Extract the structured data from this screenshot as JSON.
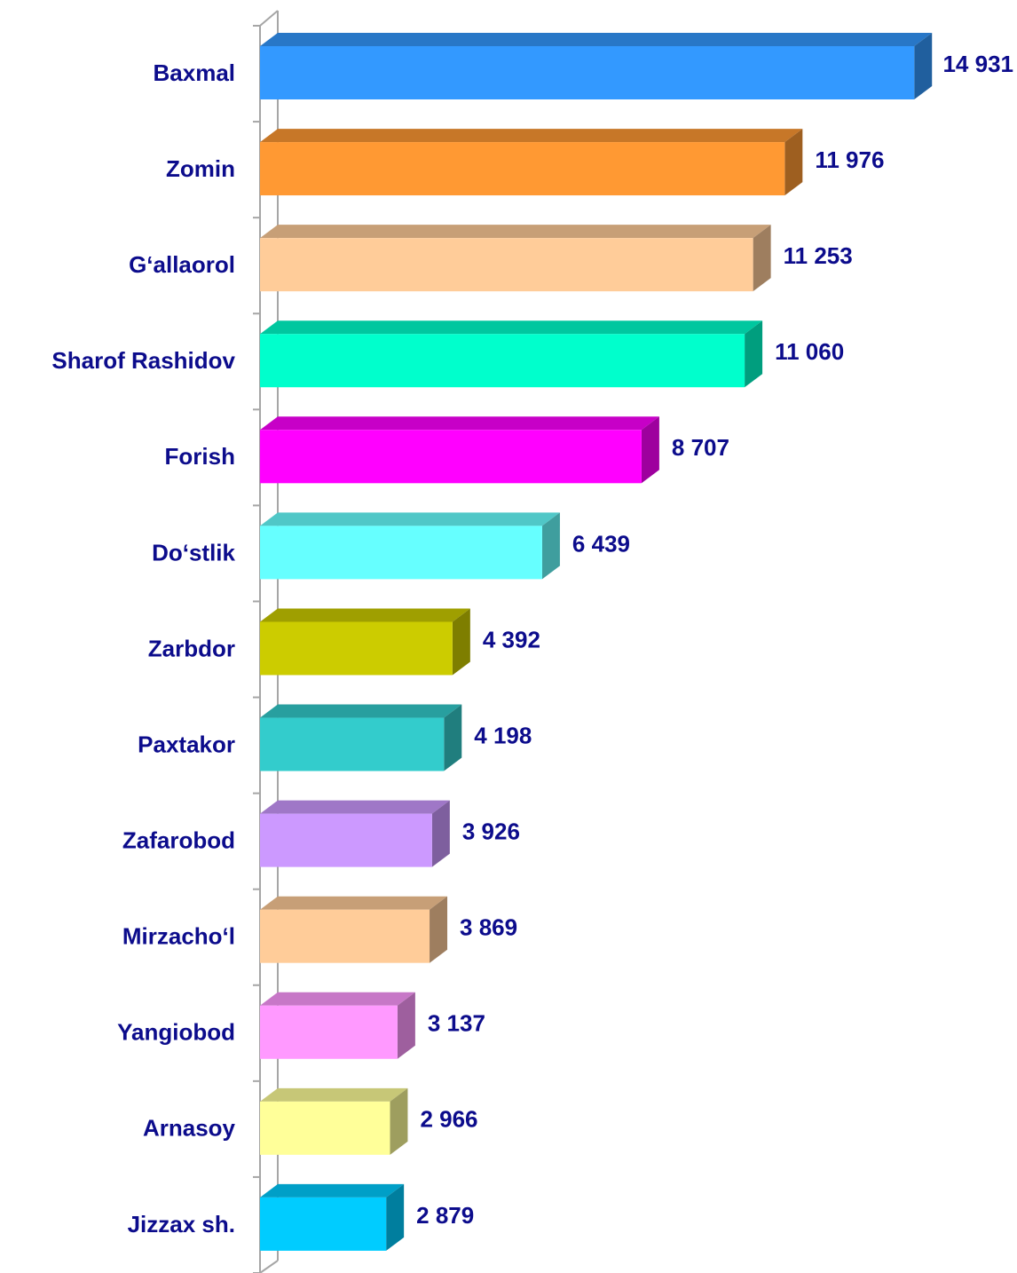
{
  "chart_data": {
    "type": "bar3d-horizontal",
    "categories": [
      "Baxmal",
      "Zomin",
      "G‘allaorol",
      "Sharof Rashidov",
      "Forish",
      "Do‘stlik",
      "Zarbdor",
      "Paxtakor",
      "Zafarobod",
      "Mirzacho‘l",
      "Yangiobod",
      "Arnasoy",
      "Jizzax sh."
    ],
    "values": [
      14931,
      11976,
      11253,
      11060,
      8707,
      6439,
      4392,
      4198,
      3926,
      3869,
      3137,
      2966,
      2879
    ],
    "value_labels": [
      "14 931",
      "11 976",
      "11 253",
      "11 060",
      "8 707",
      "6 439",
      "4 392",
      "4 198",
      "3 926",
      "3 869",
      "3 137",
      "2 966",
      "2 879"
    ],
    "colors": [
      "#3399ff",
      "#ff9933",
      "#ffcc99",
      "#00ffcc",
      "#ff00ff",
      "#66ffff",
      "#cccc00",
      "#33cccc",
      "#cc99ff",
      "#ffcc99",
      "#ff99ff",
      "#ffff99",
      "#00ccff"
    ],
    "xlim": [
      0,
      16000
    ]
  }
}
